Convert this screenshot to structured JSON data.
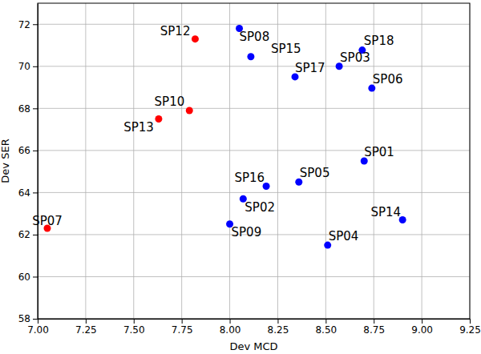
{
  "chart_data": {
    "type": "scatter",
    "x_label": "Dev MCD",
    "y_label": "Dev SER",
    "labels": [
      "SP12",
      "SP08",
      "SP15",
      "SP17",
      "SP03",
      "SP18",
      "SP06",
      "SP10",
      "SP13",
      "SP01",
      "SP16",
      "SP05",
      "SP02",
      "SP09",
      "SP14",
      "SP04",
      "SP07"
    ],
    "x": [
      7.82,
      8.05,
      8.11,
      8.34,
      8.57,
      8.69,
      8.74,
      7.79,
      7.63,
      8.7,
      8.19,
      8.36,
      8.07,
      8.0,
      8.9,
      8.51,
      7.05
    ],
    "values": [
      71.3,
      71.8,
      70.46,
      69.5,
      70.0,
      70.77,
      68.96,
      67.9,
      67.5,
      65.5,
      64.3,
      64.5,
      63.7,
      62.5,
      62.7,
      61.5,
      62.3
    ],
    "colors": [
      "#ff0000",
      "#0000ff",
      "#0000ff",
      "#0000ff",
      "#0000ff",
      "#0000ff",
      "#0000ff",
      "#ff0000",
      "#ff0000",
      "#0000ff",
      "#0000ff",
      "#0000ff",
      "#0000ff",
      "#0000ff",
      "#0000ff",
      "#0000ff",
      "#ff0000"
    ],
    "marker": "circle",
    "xlim": [
      7.0,
      9.25
    ],
    "xticks": [
      {
        "value": 7.0,
        "label": "7.00"
      },
      {
        "value": 7.25,
        "label": "7.25"
      },
      {
        "value": 7.5,
        "label": "7.50"
      },
      {
        "value": 7.75,
        "label": "7.75"
      },
      {
        "value": 8.0,
        "label": "8.00"
      },
      {
        "value": 8.25,
        "label": "8.25"
      },
      {
        "value": 8.5,
        "label": "8.50"
      },
      {
        "value": 8.75,
        "label": "8.75"
      },
      {
        "value": 9.0,
        "label": "9.00"
      },
      {
        "value": 9.25,
        "label": "9.25"
      }
    ],
    "ylim": [
      58,
      73
    ],
    "yticks": [
      58,
      60,
      62,
      64,
      66,
      68,
      70,
      72
    ],
    "grid": true
  }
}
